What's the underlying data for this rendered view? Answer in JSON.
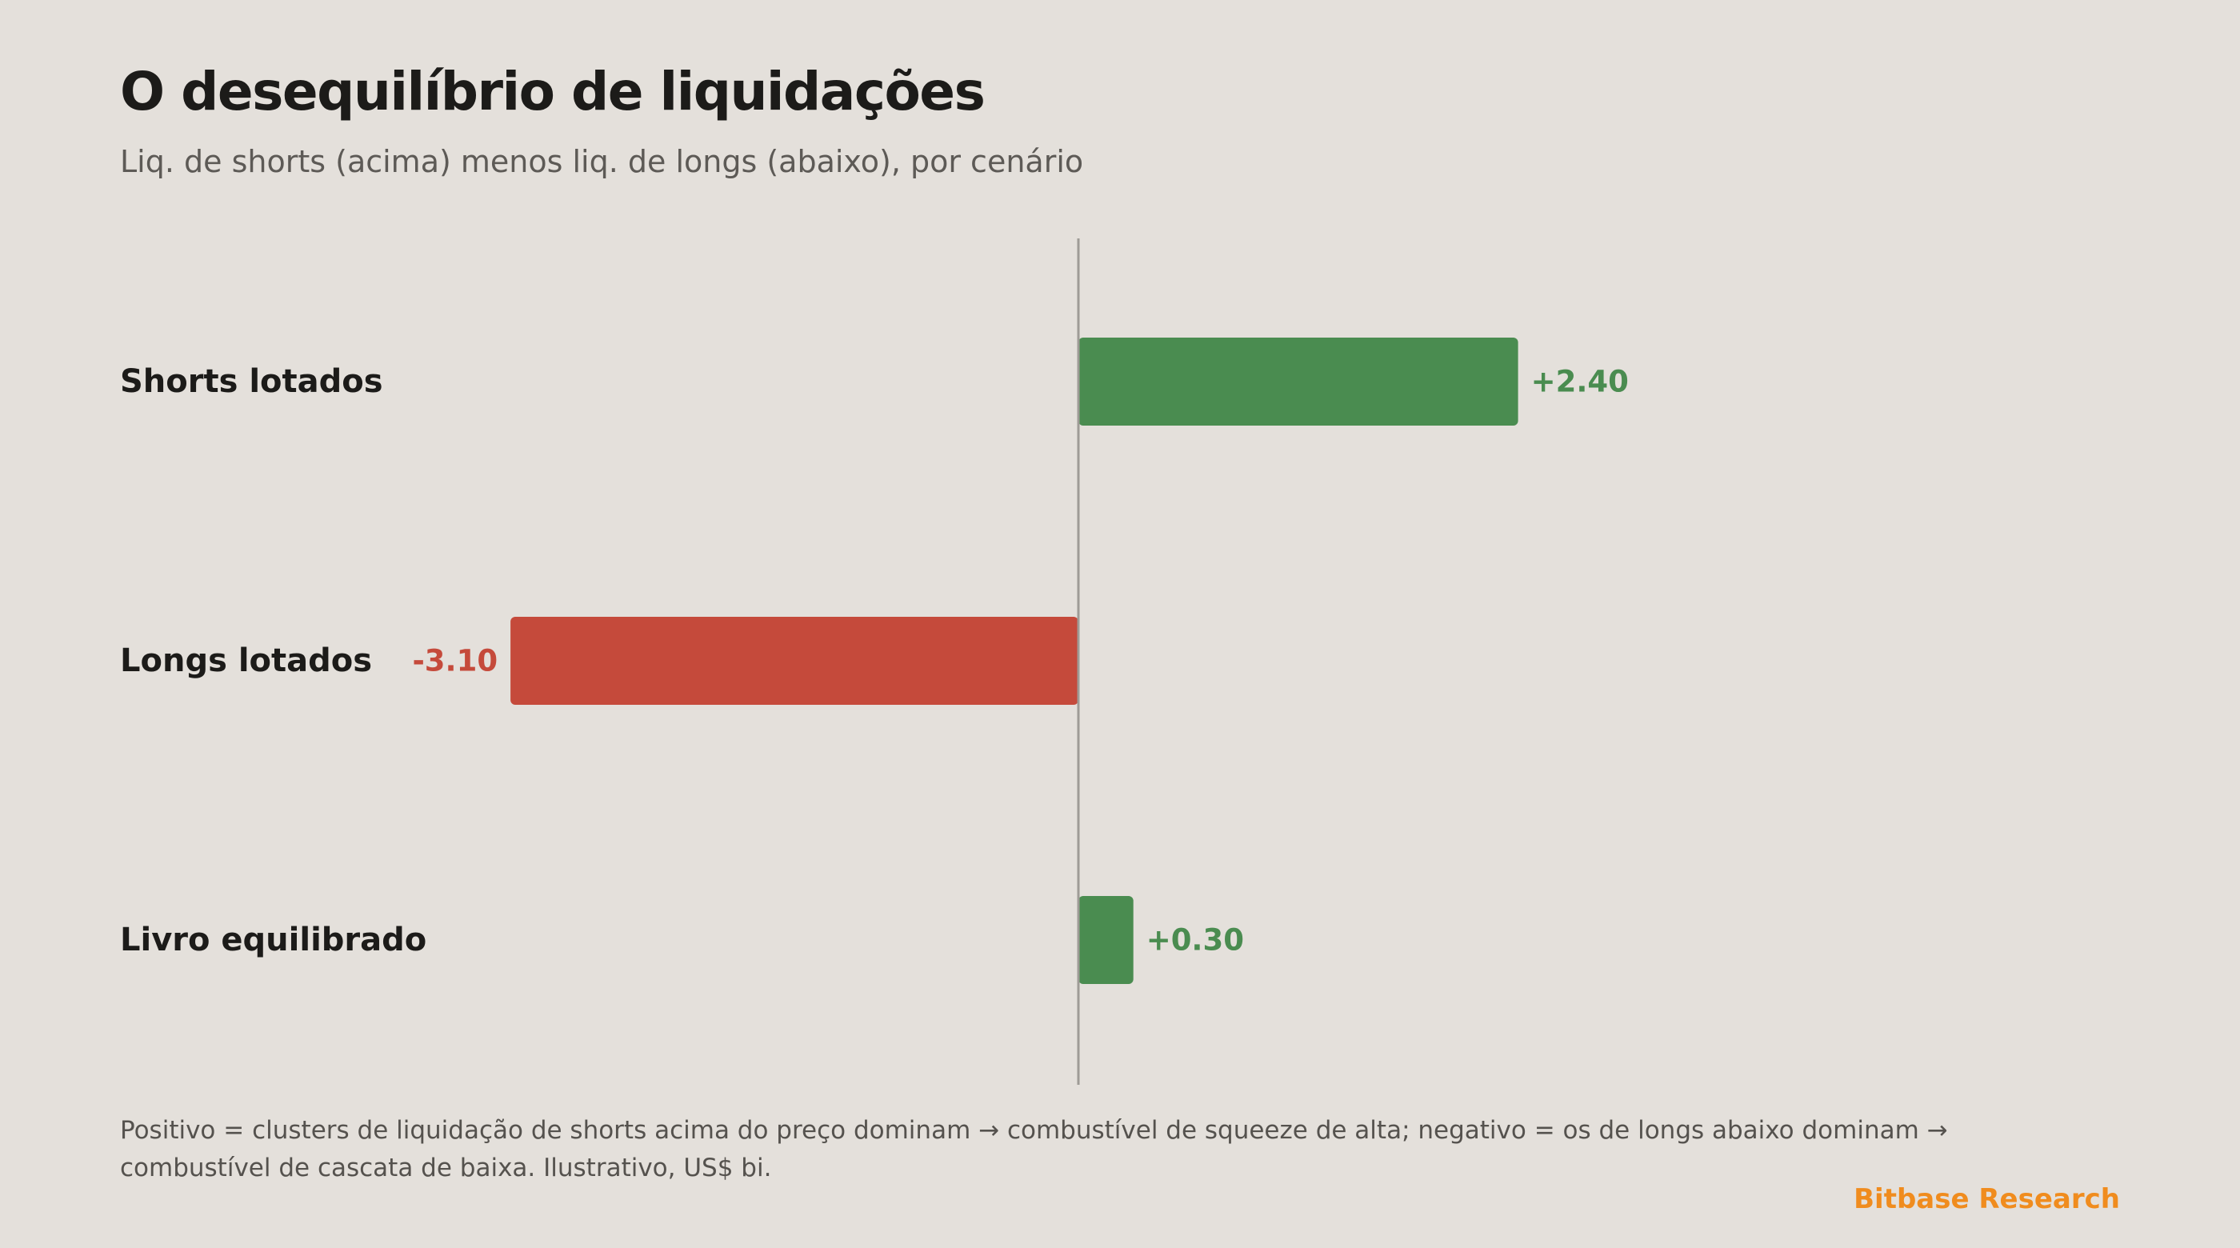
{
  "title": "O desequilíbrio de liquidações",
  "subtitle": "Liq. de shorts (acima) menos liq. de longs (abaixo), por cenário",
  "footnote": "Positivo = clusters de liquidação de shorts acima do preço dominam → combustível de squeeze de alta; negativo = os de longs abaixo dominam → combustível de cascata de baixa. Ilustrativo, US$ bi.",
  "brand": "Bitbase Research",
  "colors": {
    "positive": "#4a8c50",
    "negative": "#c54a3b",
    "zero_line": "#9e9b96",
    "brand": "#f08c1e"
  },
  "chart_data": {
    "type": "bar",
    "orientation": "horizontal",
    "categories": [
      "Shorts lotados",
      "Longs lotados",
      "Livro equilibrado"
    ],
    "values": [
      2.4,
      -3.1,
      0.3
    ],
    "value_labels": [
      "+2.40",
      "-3.10",
      "+0.30"
    ],
    "xlim": [
      -3.1,
      4.5
    ],
    "grid": false,
    "legend": "none"
  }
}
